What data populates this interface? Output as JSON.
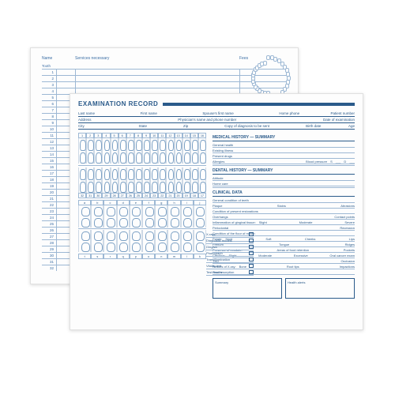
{
  "back": {
    "header_name": "Name",
    "header_tooth": "Tooth",
    "header_services": "Services necessary",
    "header_fees": "Fees",
    "row_count": 32
  },
  "front": {
    "title": "EXAMINATION RECORD",
    "info1": {
      "last": "Last name",
      "first": "First name",
      "spouse": "Spouse's first name",
      "home": "Home phone",
      "patient": "Patient number"
    },
    "info2": {
      "address": "Address",
      "physician": "Physician's name and phone number",
      "date": "Date of examination"
    },
    "info3": {
      "city": "City",
      "state": "State",
      "zip": "Zip",
      "copy": "Copy of diagnosis to be sent",
      "birth": "Birth date",
      "age": "Age"
    },
    "adult_upper": [
      1,
      2,
      3,
      4,
      5,
      6,
      7,
      8,
      9,
      10,
      11,
      12,
      13,
      14,
      15,
      16
    ],
    "adult_lower": [
      32,
      31,
      30,
      29,
      28,
      27,
      26,
      25,
      24,
      23,
      22,
      21,
      20,
      19,
      18,
      17
    ],
    "child_upper": [
      "a",
      "b",
      "c",
      "d",
      "e",
      "f",
      "g",
      "h",
      "i",
      "j"
    ],
    "child_lower": [
      "t",
      "s",
      "r",
      "q",
      "p",
      "o",
      "n",
      "m",
      "l",
      "k"
    ],
    "checklist": [
      "X-rays",
      "Diagnostic models",
      "Gingiva",
      "Photograph",
      "Transillumination",
      "Vitality test",
      "Test results"
    ],
    "med_hdr": "MEDICAL HISTORY — SUMMARY",
    "med": {
      "gen": "General health",
      "ill": "Existing illness",
      "drugs": "Present drugs",
      "allerg": "Allergies",
      "bp": "Blood pressure",
      "s": "S",
      "d": "D"
    },
    "dent_hdr": "DENTAL HISTORY — SUMMARY",
    "dent": {
      "att": "Attitude",
      "home": "Home care"
    },
    "clin_hdr": "CLINICAL DATA",
    "clin": {
      "gen": "General condition of teeth",
      "plaque": "Plaque",
      "stains": "Stains",
      "abrasions": "Abrasions",
      "rest": "Condition of present restorations",
      "over": "Overhangs",
      "contact": "Contact points",
      "gum": "Inflammation of gingival tissue:",
      "slight": "Slight",
      "mod": "Moderate",
      "sev": "Severe",
      "perio": "Periodontal",
      "rec": "Recession",
      "floor": "Condition of the floor of mouth",
      "palate": "Palate:",
      "hard": "Hard",
      "soft": "Soft",
      "cheeks": "Cheeks",
      "lips": "Lips",
      "frenum": "Frenum",
      "tongue": "Tongue",
      "ridges": "Ridges",
      "exu": "Presence of exudate:",
      "area": "Areas of food retention",
      "pockets": "Pockets",
      "calc": "Calculus:",
      "mob": "Moderate",
      "exc": "Excessive",
      "oral": "Oral cancer exam",
      "tmj": "TMJ",
      "occ": "Occlusion",
      "xray": "Results of X-ray:",
      "bone": "Bone",
      "root": "Root tips",
      "imp": "Impactions",
      "rr": "Root resorption"
    },
    "summary": "Summary",
    "alerts": "Health alerts"
  },
  "colors": {
    "ink": "#2a5a8a",
    "line": "#9db8d4"
  }
}
